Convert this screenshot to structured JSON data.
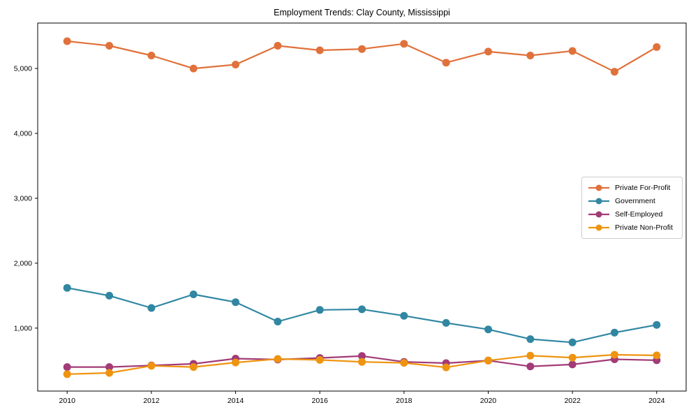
{
  "title": "Employment Trends: Clay County, Mississippi",
  "chart_data": {
    "type": "line",
    "title": "Employment Trends: Clay County, Mississippi",
    "xlabel": "",
    "ylabel": "",
    "x": [
      2010,
      2011,
      2012,
      2013,
      2014,
      2015,
      2016,
      2017,
      2018,
      2019,
      2020,
      2021,
      2022,
      2023,
      2024
    ],
    "series": [
      {
        "name": "Private For-Profit",
        "color": "#e0713b",
        "values": [
          5420,
          5350,
          5200,
          5000,
          5060,
          5350,
          5280,
          5300,
          5380,
          5090,
          5260,
          5200,
          5270,
          4950,
          5330
        ]
      },
      {
        "name": "Government",
        "color": "#3187a2",
        "values": [
          1620,
          1500,
          1310,
          1520,
          1400,
          1100,
          1280,
          1290,
          1190,
          1080,
          980,
          830,
          780,
          930,
          1050
        ]
      },
      {
        "name": "Self-Employed",
        "color": "#a23b77",
        "values": [
          400,
          400,
          425,
          450,
          530,
          515,
          540,
          570,
          480,
          460,
          500,
          410,
          440,
          520,
          505
        ]
      },
      {
        "name": "Private Non-Profit",
        "color": "#ee9410",
        "values": [
          290,
          310,
          420,
          400,
          470,
          525,
          510,
          480,
          465,
          395,
          500,
          575,
          545,
          590,
          580
        ]
      }
    ],
    "xticks": [
      2010,
      2012,
      2014,
      2016,
      2018,
      2020,
      2022,
      2024
    ],
    "xtick_labels": [
      "2010",
      "2012",
      "2014",
      "2016",
      "2018",
      "2020",
      "2022",
      "2024"
    ],
    "yticks": [
      1000,
      2000,
      3000,
      4000,
      5000
    ],
    "ytick_labels": [
      "1,000",
      "2,000",
      "3,000",
      "4,000",
      "5,000"
    ],
    "xlim": [
      2009.3,
      2024.7
    ],
    "ylim": [
      30,
      5700
    ],
    "grid": false,
    "legend_position": "center-right",
    "marker": "circle",
    "line_width": 2.2,
    "marker_radius": 5.5
  }
}
